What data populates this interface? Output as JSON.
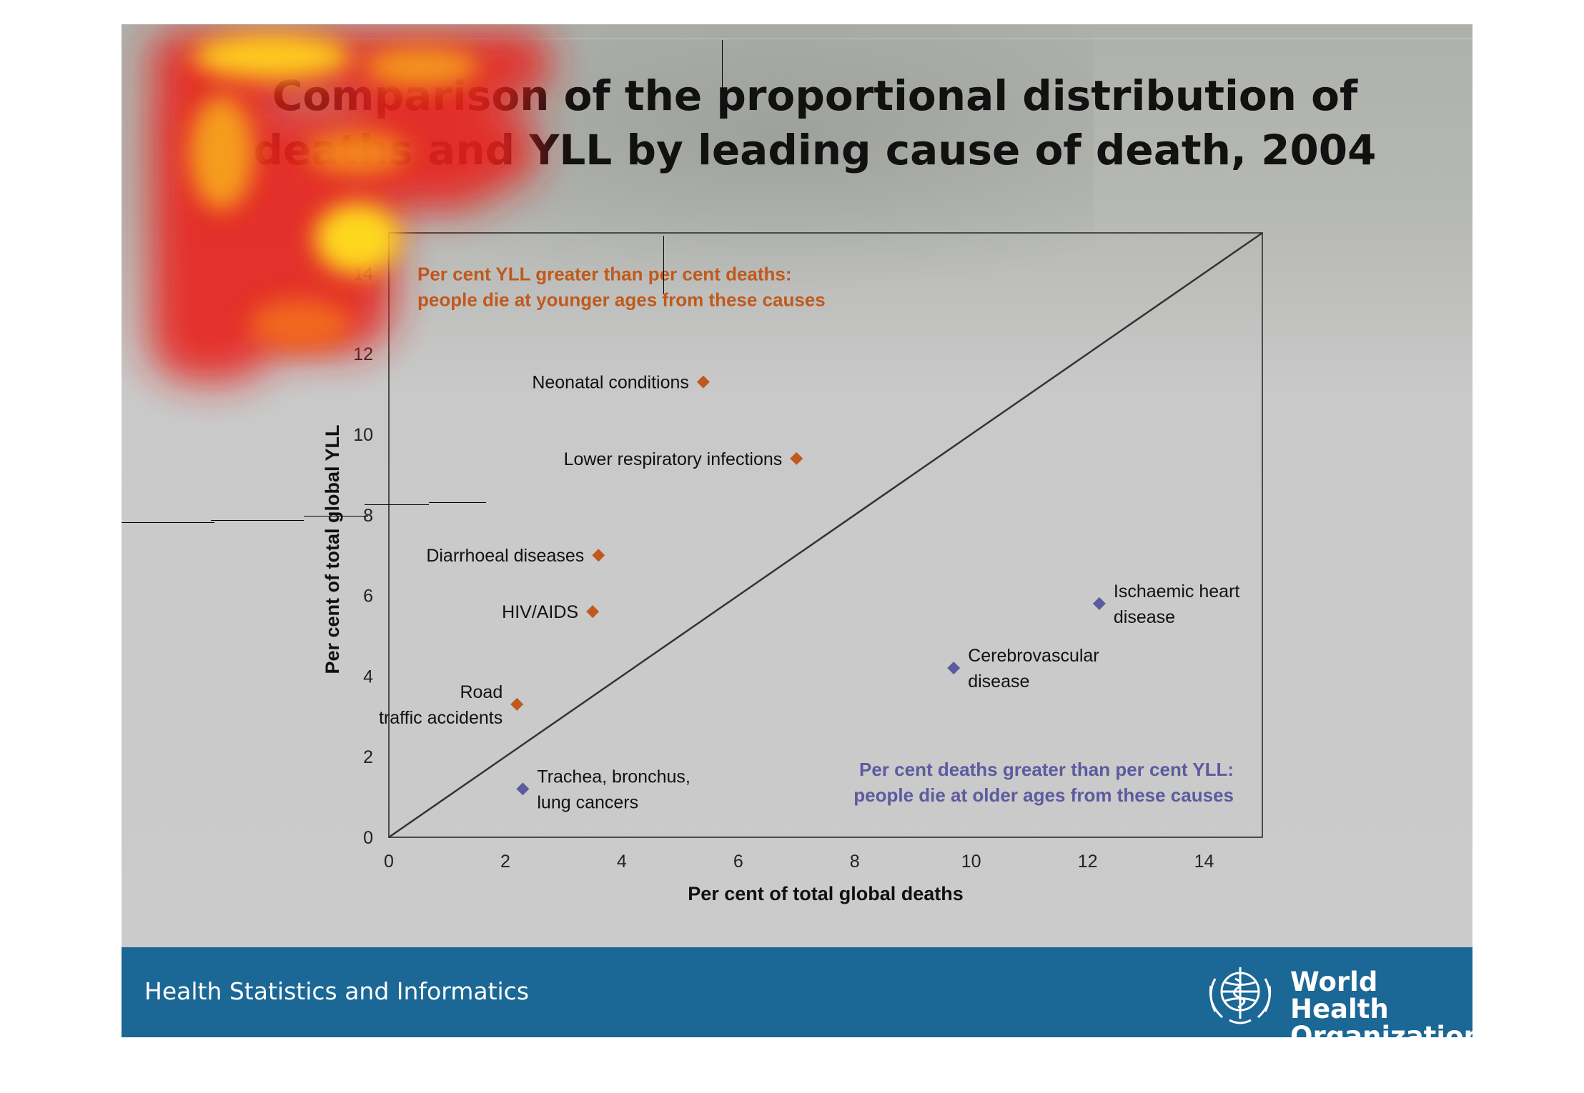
{
  "slide": {
    "title_line1": "Comparison of the proportional distribution of",
    "title_line2": "deaths and YLL by leading cause of death, 2004"
  },
  "footer": {
    "text": "Health Statistics and Informatics",
    "org_line1": "World Health",
    "org_line2": "Organization",
    "bar_color": "#1b6795"
  },
  "icons": [
    "who-emblem-icon"
  ],
  "colors": {
    "yll_greater": "#c0591c",
    "deaths_greater": "#5d5aa0",
    "reference_line": "#333333"
  },
  "chart_data": {
    "type": "scatter",
    "title": "",
    "xlabel": "Per cent of total global deaths",
    "ylabel": "Per cent of total global YLL",
    "xlim": [
      0,
      15
    ],
    "ylim": [
      0,
      15
    ],
    "xticks": [
      0,
      2,
      4,
      6,
      8,
      10,
      12,
      14
    ],
    "yticks": [
      0,
      2,
      4,
      6,
      8,
      10,
      12,
      14
    ],
    "reference_line": {
      "from": [
        0,
        0
      ],
      "to": [
        15,
        15
      ]
    },
    "annotations": [
      {
        "lines": [
          "Per cent YLL greater than per cent deaths:",
          "people die at younger ages from these causes"
        ],
        "color": "#c0591c",
        "position": "top-left"
      },
      {
        "lines": [
          "Per cent deaths greater than per cent YLL:",
          "people die at older ages from these causes"
        ],
        "color": "#5d5aa0",
        "position": "bottom-right"
      }
    ],
    "points": [
      {
        "label": [
          "Neonatal conditions"
        ],
        "x": 5.4,
        "y": 11.3,
        "group": "yll_greater",
        "label_side": "left"
      },
      {
        "label": [
          "Lower respiratory infections"
        ],
        "x": 7.0,
        "y": 9.4,
        "group": "yll_greater",
        "label_side": "left"
      },
      {
        "label": [
          "Diarrhoeal diseases"
        ],
        "x": 3.6,
        "y": 7.0,
        "group": "yll_greater",
        "label_side": "left"
      },
      {
        "label": [
          "HIV/AIDS"
        ],
        "x": 3.5,
        "y": 5.6,
        "group": "yll_greater",
        "label_side": "left"
      },
      {
        "label": [
          "Road",
          "traffic accidents"
        ],
        "x": 2.2,
        "y": 3.3,
        "group": "yll_greater",
        "label_side": "left"
      },
      {
        "label": [
          "Trachea, bronchus,",
          "lung cancers"
        ],
        "x": 2.3,
        "y": 1.2,
        "group": "deaths_greater",
        "label_side": "right"
      },
      {
        "label": [
          "Cerebrovascular",
          "disease"
        ],
        "x": 9.7,
        "y": 4.2,
        "group": "deaths_greater",
        "label_side": "right"
      },
      {
        "label": [
          "Ischaemic heart",
          "disease"
        ],
        "x": 12.2,
        "y": 5.8,
        "group": "deaths_greater",
        "label_side": "right"
      }
    ],
    "grid": false,
    "legend": "none"
  }
}
